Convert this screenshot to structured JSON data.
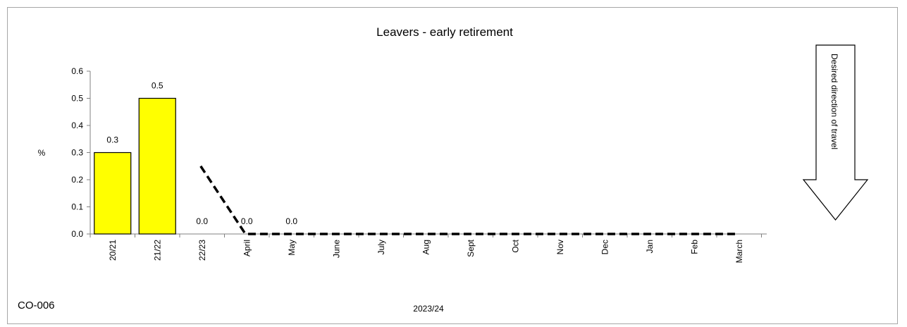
{
  "chart_data": {
    "type": "bar",
    "title": "Leavers - early retirement",
    "ylabel": "%",
    "xlabel": "2023/24",
    "ylim": [
      0,
      0.6
    ],
    "yticks": [
      "0.0",
      "0.1",
      "0.2",
      "0.3",
      "0.4",
      "0.5",
      "0.6"
    ],
    "categories": [
      "20/21",
      "21/22",
      "22/23",
      "April",
      "May",
      "June",
      "July",
      "Aug",
      "Sept",
      "Oct",
      "Nov",
      "Dec",
      "Jan",
      "Feb",
      "March"
    ],
    "series": [
      {
        "type": "bar",
        "values": [
          0.3,
          0.5,
          0.0,
          0.0,
          0.0,
          null,
          null,
          null,
          null,
          null,
          null,
          null,
          null,
          null,
          null
        ],
        "data_labels": [
          "0.3",
          "0.5",
          "0.0",
          "0.0",
          "0.0",
          "",
          "",
          "",
          "",
          "",
          "",
          "",
          "",
          "",
          ""
        ],
        "color": "#ffff00"
      },
      {
        "type": "line",
        "style": "dashed",
        "color": "#000000",
        "values": [
          null,
          null,
          0.25,
          0.0,
          0.0,
          0.0,
          0.0,
          0.0,
          0.0,
          0.0,
          0.0,
          0.0,
          0.0,
          0.0,
          0.0
        ]
      }
    ],
    "grid": false
  },
  "code_label": "CO-006",
  "direction_label": "Desired direction of travel",
  "direction_icon": "down-arrow-icon"
}
